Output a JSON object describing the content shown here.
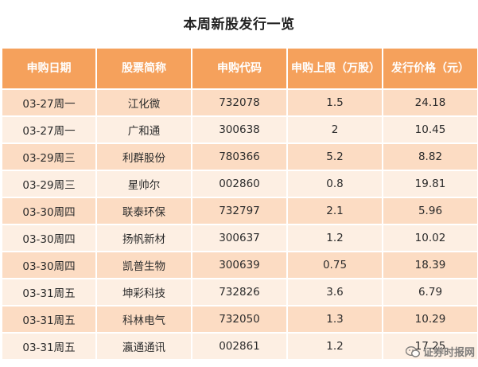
{
  "title": "本周新股发行一览",
  "table": {
    "headers": [
      "申购日期",
      "股票简称",
      "申购代码",
      "申购上限（万股）",
      "发行价格（元）"
    ],
    "rows": [
      [
        "03-27周一",
        "江化微",
        "732078",
        "1.5",
        "24.18"
      ],
      [
        "03-27周一",
        "广和通",
        "300638",
        "2",
        "10.45"
      ],
      [
        "03-29周三",
        "利群股份",
        "780366",
        "5.2",
        "8.82"
      ],
      [
        "03-29周三",
        "星帅尔",
        "002860",
        "0.8",
        "19.81"
      ],
      [
        "03-30周四",
        "联泰环保",
        "732797",
        "2.1",
        "5.96"
      ],
      [
        "03-30周四",
        "扬帆新材",
        "300637",
        "1.2",
        "10.02"
      ],
      [
        "03-30周四",
        "凯普生物",
        "300639",
        "0.75",
        "18.39"
      ],
      [
        "03-31周五",
        "坤彩科技",
        "732826",
        "3.6",
        "6.79"
      ],
      [
        "03-31周五",
        "科林电气",
        "732050",
        "1.3",
        "10.29"
      ],
      [
        "03-31周五",
        "瀛通通讯",
        "002861",
        "1.2",
        "17.25"
      ]
    ]
  },
  "watermark": {
    "text": "证券时报网",
    "icon": "wechat-icon"
  }
}
